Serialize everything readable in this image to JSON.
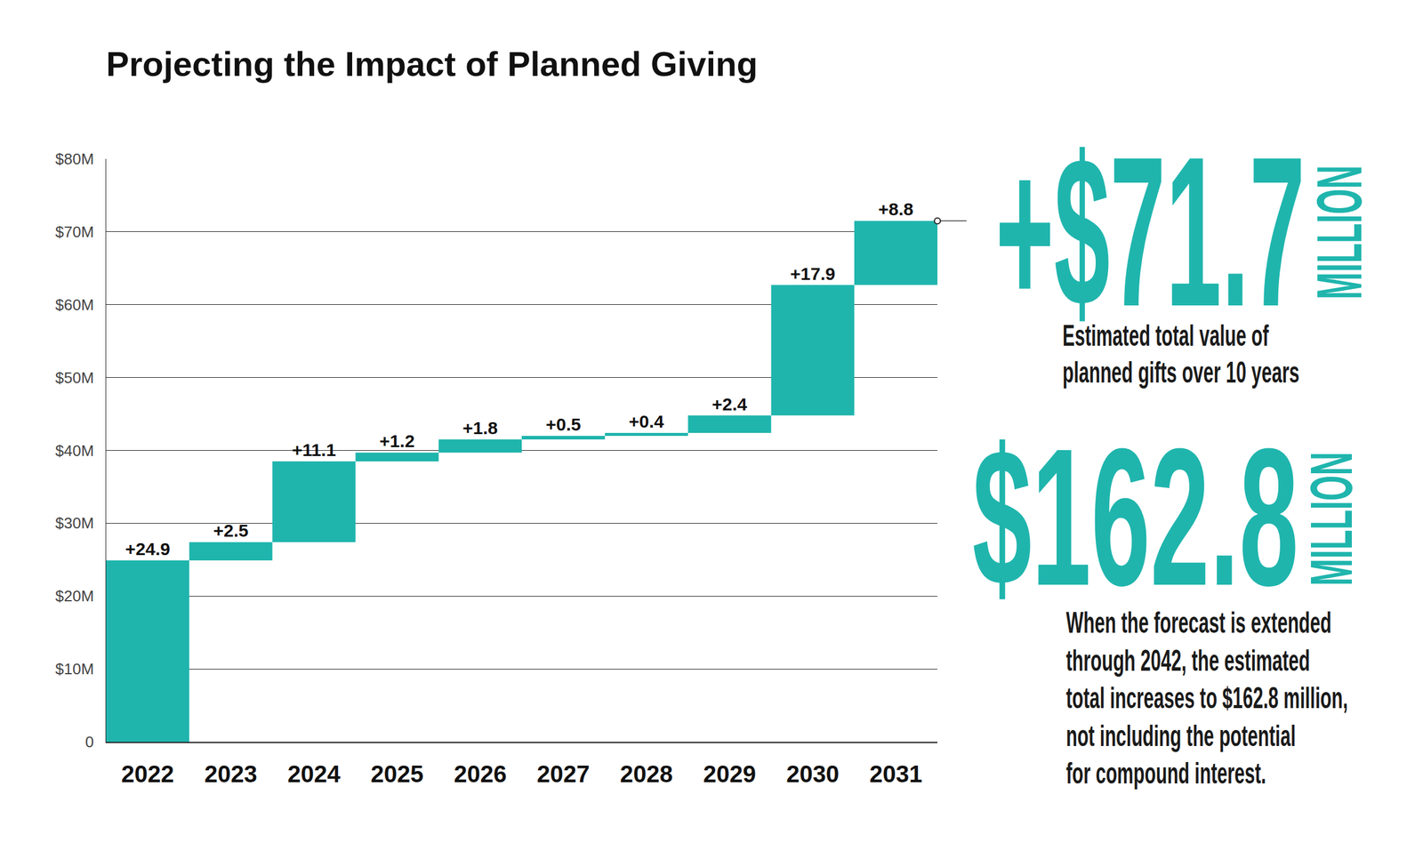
{
  "chart_data": {
    "type": "waterfall",
    "title": "Projecting the Impact of Planned Giving",
    "categories": [
      "2022",
      "2023",
      "2024",
      "2025",
      "2026",
      "2027",
      "2028",
      "2029",
      "2030",
      "2031"
    ],
    "values": [
      24.9,
      2.5,
      11.1,
      1.2,
      1.8,
      0.5,
      0.4,
      2.4,
      17.9,
      8.8
    ],
    "value_labels": [
      "+24.9",
      "+2.5",
      "+11.1",
      "+1.2",
      "+1.8",
      "+0.5",
      "+0.4",
      "+2.4",
      "+17.9",
      "+8.8"
    ],
    "color": "#1fb5ad",
    "ylim": [
      0,
      80
    ],
    "yticks": [
      0,
      {
        "value": 10,
        "label": "$10M"
      },
      {
        "value": 20,
        "label": "$20M"
      },
      {
        "value": 30,
        "label": "$30M"
      },
      {
        "value": 40,
        "label": "$40M"
      },
      {
        "value": 50,
        "label": "$50M"
      },
      {
        "value": 60,
        "label": "$60M"
      },
      {
        "value": 70,
        "label": "$70M"
      },
      {
        "value": 80,
        "label": "$80M"
      }
    ],
    "grid": true,
    "data_labels": true,
    "annotations": [
      {
        "text": "+$71.7",
        "unit": "MILLION",
        "caption": [
          "Estimated total value of",
          "planned gifts over 10 years"
        ]
      },
      {
        "text": "$162.8",
        "unit": "MILLION",
        "caption": [
          "When the forecast is extended",
          "through 2042, the estimated",
          "total increases to $162.8 million,",
          "not including the potential",
          "for compound interest."
        ]
      }
    ]
  }
}
